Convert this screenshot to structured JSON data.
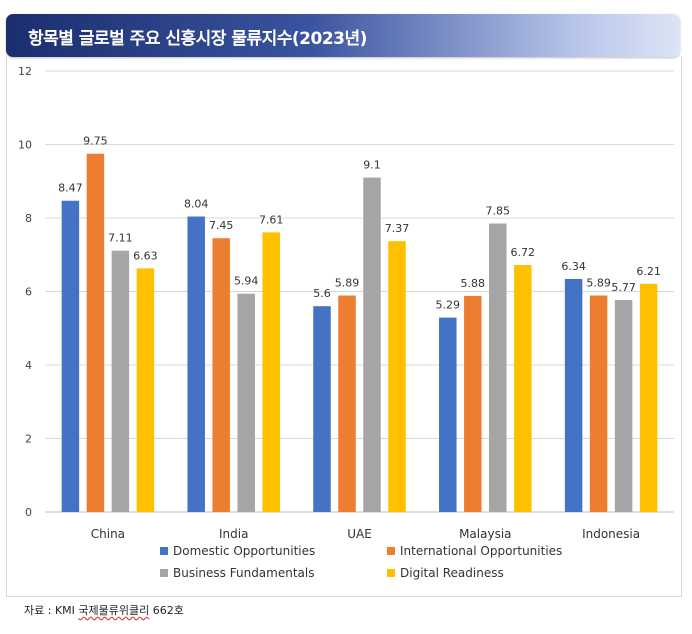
{
  "title": "항목별 글로벌 주요 신흥시장 물류지수(2023년)",
  "source": {
    "prefix": "자료 : KMI ",
    "underlined": "국제물류위클리",
    "suffix": " 662호"
  },
  "colors": {
    "Domestic Opportunities": "#4472c4",
    "International Opportunities": "#ed7d31",
    "Business Fundamentals": "#a5a5a5",
    "Digital Readiness": "#ffc000"
  },
  "chart_data": {
    "type": "bar",
    "title": "항목별 글로벌 주요 신흥시장 물류지수(2023년)",
    "xlabel": "",
    "ylabel": "",
    "ylim": [
      0,
      12
    ],
    "yticks": [
      0,
      2,
      4,
      6,
      8,
      10,
      12
    ],
    "grid": true,
    "legend_position": "bottom",
    "categories": [
      "China",
      "India",
      "UAE",
      "Malaysia",
      "Indonesia"
    ],
    "series": [
      {
        "name": "Domestic Opportunities",
        "values": [
          8.47,
          8.04,
          5.6,
          5.29,
          6.34
        ],
        "labels": [
          "8.47",
          "8.04",
          "5.6",
          "5.29",
          "6.34"
        ]
      },
      {
        "name": "International Opportunities",
        "values": [
          9.75,
          7.45,
          5.89,
          5.88,
          5.89
        ],
        "labels": [
          "9.75",
          "7.45",
          "5.89",
          "5.88",
          "5.89"
        ]
      },
      {
        "name": "Business Fundamentals",
        "values": [
          7.11,
          5.94,
          9.1,
          7.85,
          5.77
        ],
        "labels": [
          "7.11",
          "5.94",
          "9.1",
          "7.85",
          "5.77"
        ]
      },
      {
        "name": "Digital Readiness",
        "values": [
          6.63,
          7.61,
          7.37,
          6.72,
          6.21
        ],
        "labels": [
          "6.63",
          "7.61",
          "7.37",
          "6.72",
          "6.21"
        ]
      }
    ]
  }
}
